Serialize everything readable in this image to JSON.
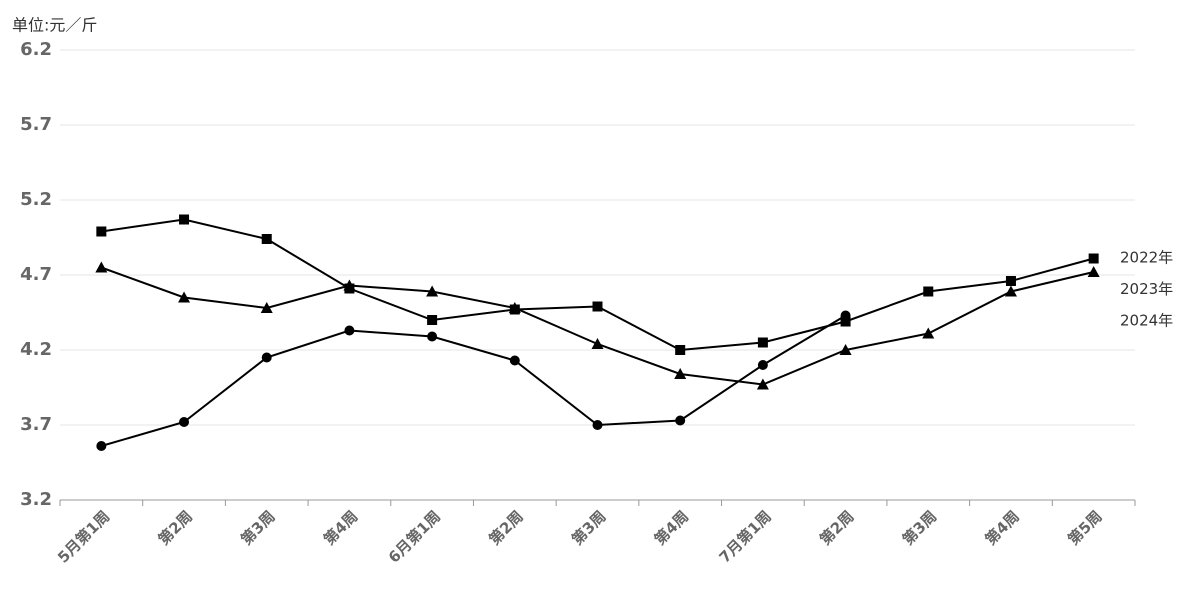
{
  "chart_data": {
    "type": "line",
    "y_label": "单位:元／斤",
    "categories": [
      "5月第1周",
      "第2周",
      "第3周",
      "第4周",
      "6月第1周",
      "第2周",
      "第3周",
      "第4周",
      "7月第1周",
      "第2周",
      "第3周",
      "第4周",
      "第5周"
    ],
    "series": [
      {
        "name": "2022年",
        "color": "#000000",
        "marker": "square",
        "values": [
          4.99,
          5.07,
          4.94,
          4.61,
          4.4,
          4.47,
          4.49,
          4.2,
          4.25,
          4.39,
          4.59,
          4.66,
          4.81
        ]
      },
      {
        "name": "2023年",
        "color": "#000000",
        "marker": "triangle",
        "values": [
          4.75,
          4.55,
          4.48,
          4.63,
          4.59,
          4.48,
          4.24,
          4.04,
          3.97,
          4.2,
          4.31,
          4.59,
          4.72
        ]
      },
      {
        "name": "2024年",
        "color": "#000000",
        "marker": "circle",
        "values": [
          3.56,
          3.72,
          4.15,
          4.33,
          4.29,
          4.13,
          3.7,
          3.73,
          4.1,
          4.43,
          null,
          null,
          null
        ]
      }
    ],
    "ylim": [
      3.2,
      6.2
    ],
    "yticks": [
      3.2,
      3.7,
      4.2,
      4.7,
      5.2,
      5.7,
      6.2
    ],
    "grid": true,
    "legend": "right"
  }
}
